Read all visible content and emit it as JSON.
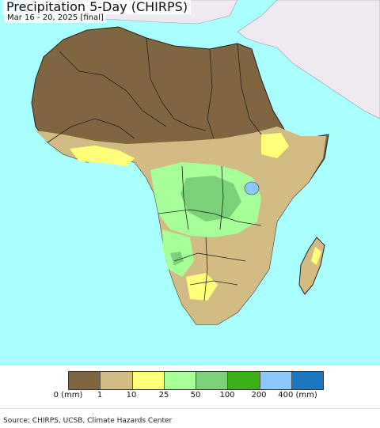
{
  "header": {
    "title": "Precipitation 5-Day (CHIRPS)",
    "subtitle": "Mar 16 - 20, 2025 [final]"
  },
  "legend": {
    "colors": [
      "#806640",
      "#d2bc84",
      "#ffff7a",
      "#a6ff99",
      "#7bd17a",
      "#3cb019",
      "#8ac8ff",
      "#1c78be"
    ],
    "ticks": [
      "0 (mm)",
      "1",
      "10",
      "25",
      "50",
      "100",
      "200",
      "400 (mm)"
    ]
  },
  "map": {
    "ocean_color": "#aaffff",
    "outside_color": "#efeaf2",
    "dry_color": "#806640",
    "light_color": "#d2bc84",
    "yellow_color": "#ffff7a",
    "green_light": "#a6ff99",
    "green_mid": "#7bd17a",
    "lake_color": "#8ac8ff"
  },
  "footer": {
    "source": "Source: CHIRPS, UCSB, Climate Hazards Center"
  }
}
